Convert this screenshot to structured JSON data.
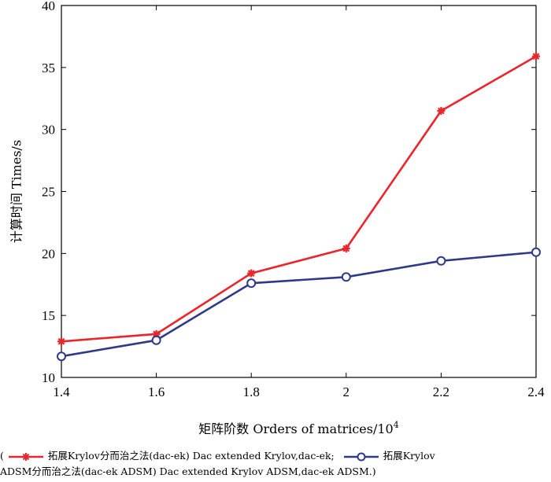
{
  "chart_data": {
    "type": "line",
    "x": [
      1.4,
      1.6,
      1.8,
      2.0,
      2.2,
      2.4
    ],
    "xticks": [
      "1.4",
      "1.6",
      "1.8",
      "2",
      "2.2",
      "2.4"
    ],
    "yticks": [
      "10",
      "15",
      "20",
      "25",
      "30",
      "35",
      "40"
    ],
    "xlim": [
      1.4,
      2.4
    ],
    "ylim": [
      10,
      40
    ],
    "xlabel": "矩阵阶数 Orders of matrices/10",
    "xlabel_exponent": "4",
    "ylabel": "计算时间 Times/s",
    "grid": false,
    "legend_position": "bottom",
    "series": [
      {
        "name": "拓展Krylov分而治之法(dac-ek) Dac extended Krylov,dac-ek;",
        "marker": "star",
        "color": "#e8262b",
        "values": [
          12.9,
          13.5,
          18.4,
          20.4,
          31.5,
          35.9
        ]
      },
      {
        "name": "拓展Krylov ADSM分而治之法(dac-ek ADSM) Dac extended Krylov ADSM,dac-ek ADSM.",
        "marker": "circle",
        "color": "#2e3a87",
        "values": [
          11.7,
          13.0,
          17.6,
          18.1,
          19.4,
          20.1
        ]
      }
    ]
  },
  "legend": {
    "open_paren": "(",
    "series1_text": "拓展Krylov分而治之法(dac-ek) Dac extended Krylov,dac-ek;",
    "series2_text_part1": "拓展Krylov",
    "series2_text_part2": "ADSM分而治之法(dac-ek ADSM) Dac extended Krylov ADSM,dac-ek ADSM.)"
  }
}
